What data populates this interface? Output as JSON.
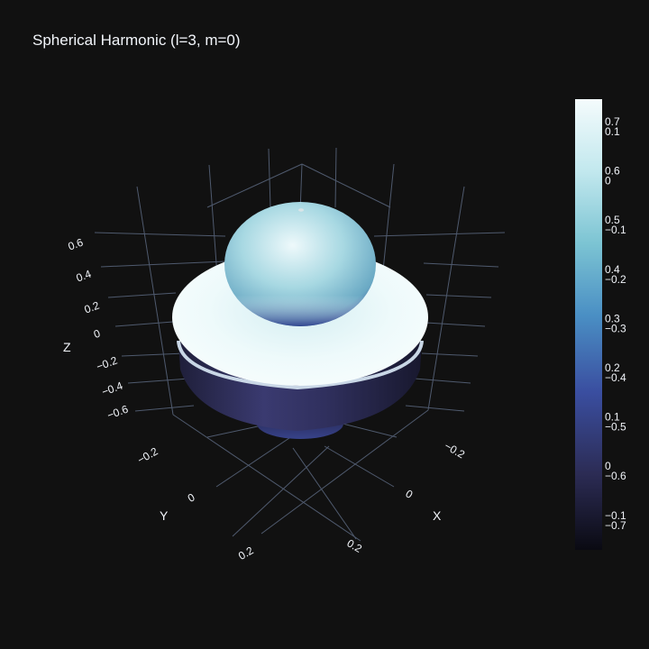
{
  "chart_data": {
    "type": "surface3d",
    "title": "Spherical Harmonic (l=3, m=0)",
    "function": "Y_3^0",
    "scene": {
      "xaxis": {
        "title": "X",
        "ticks": [
          "−0.2",
          "0",
          "0.2"
        ]
      },
      "yaxis": {
        "title": "Y",
        "ticks": [
          "−0.2",
          "0",
          "0.2"
        ]
      },
      "zaxis": {
        "title": "Z",
        "ticks": [
          "0.6",
          "0.4",
          "0.2",
          "0",
          "−0.2",
          "−0.4",
          "−0.6"
        ]
      },
      "grid": true,
      "background": "#111111"
    },
    "surface": {
      "upper_lobe_zmax": 0.75,
      "lower_lobe_zmin": -0.75,
      "ring_radius": 0.45,
      "ring_z": -0.05
    },
    "colorbar": {
      "colorscale": [
        "#0a0a12",
        "#2c2c55",
        "#3a4ea0",
        "#4a8fc4",
        "#7cc4d3",
        "#c2e8ee",
        "#f4fbfc"
      ],
      "ticks_primary": [
        "0.7",
        "0.6",
        "0.5",
        "0.4",
        "0.3",
        "0.2",
        "0.1",
        "0",
        "−0.1"
      ],
      "ticks_secondary": [
        "0.1",
        "0",
        "−0.1",
        "−0.2",
        "−0.3",
        "−0.4",
        "−0.5",
        "−0.6",
        "−0.7"
      ]
    }
  },
  "colors": {
    "background": "#111111",
    "grid": "#4f5a6e",
    "text": "#f2f5fa"
  }
}
